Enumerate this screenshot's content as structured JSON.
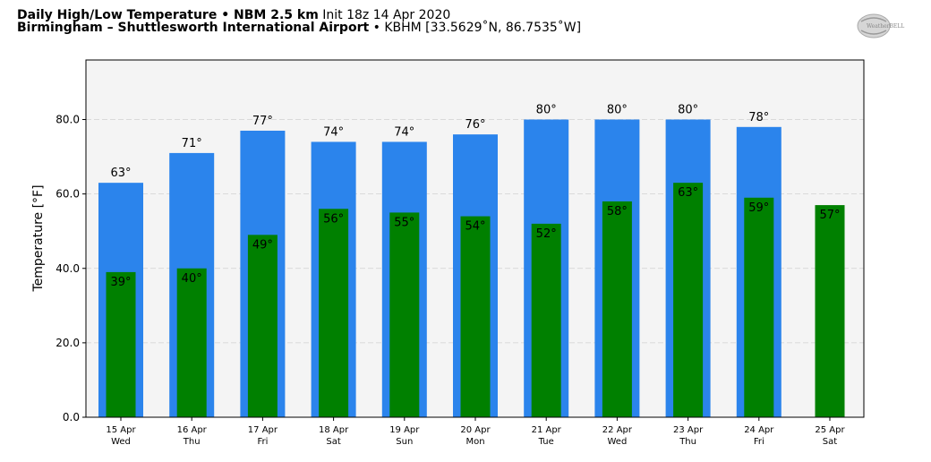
{
  "header": {
    "title_bold": "Daily High/Low Temperature • NBM 2.5 km",
    "init": "Init 18z 14 Apr 2020",
    "station_bold": "Birmingham – Shuttlesworth International Airport",
    "station_info": "• KBHM [33.5629˚N, 86.7535˚W]"
  },
  "logo": {
    "text": "WeatherBELL"
  },
  "colors": {
    "high_bar": "#2b84ec",
    "low_bar": "#008000",
    "plot_bg": "#f4f4f4"
  },
  "chart_data": {
    "type": "bar",
    "ylabel": "Temperature [°F]",
    "ylim": [
      0,
      96
    ],
    "yticks": [
      "0.0",
      "20.0",
      "40.0",
      "60.0",
      "80.0"
    ],
    "grid": true,
    "categories": [
      {
        "date": "15 Apr",
        "day": "Wed"
      },
      {
        "date": "16 Apr",
        "day": "Thu"
      },
      {
        "date": "17 Apr",
        "day": "Fri"
      },
      {
        "date": "18 Apr",
        "day": "Sat"
      },
      {
        "date": "19 Apr",
        "day": "Sun"
      },
      {
        "date": "20 Apr",
        "day": "Mon"
      },
      {
        "date": "21 Apr",
        "day": "Tue"
      },
      {
        "date": "22 Apr",
        "day": "Wed"
      },
      {
        "date": "23 Apr",
        "day": "Thu"
      },
      {
        "date": "24 Apr",
        "day": "Fri"
      },
      {
        "date": "25 Apr",
        "day": "Sat"
      }
    ],
    "series": [
      {
        "values": [
          63,
          71,
          77,
          74,
          74,
          76,
          80,
          80,
          80,
          78,
          null
        ],
        "labels": [
          "63°",
          "71°",
          "77°",
          "74°",
          "74°",
          "76°",
          "80°",
          "80°",
          "80°",
          "78°",
          ""
        ]
      },
      {
        "values": [
          39,
          40,
          49,
          56,
          55,
          54,
          52,
          58,
          63,
          59,
          57
        ],
        "labels": [
          "39°",
          "40°",
          "49°",
          "56°",
          "55°",
          "54°",
          "52°",
          "58°",
          "63°",
          "59°",
          "57°"
        ]
      }
    ]
  }
}
